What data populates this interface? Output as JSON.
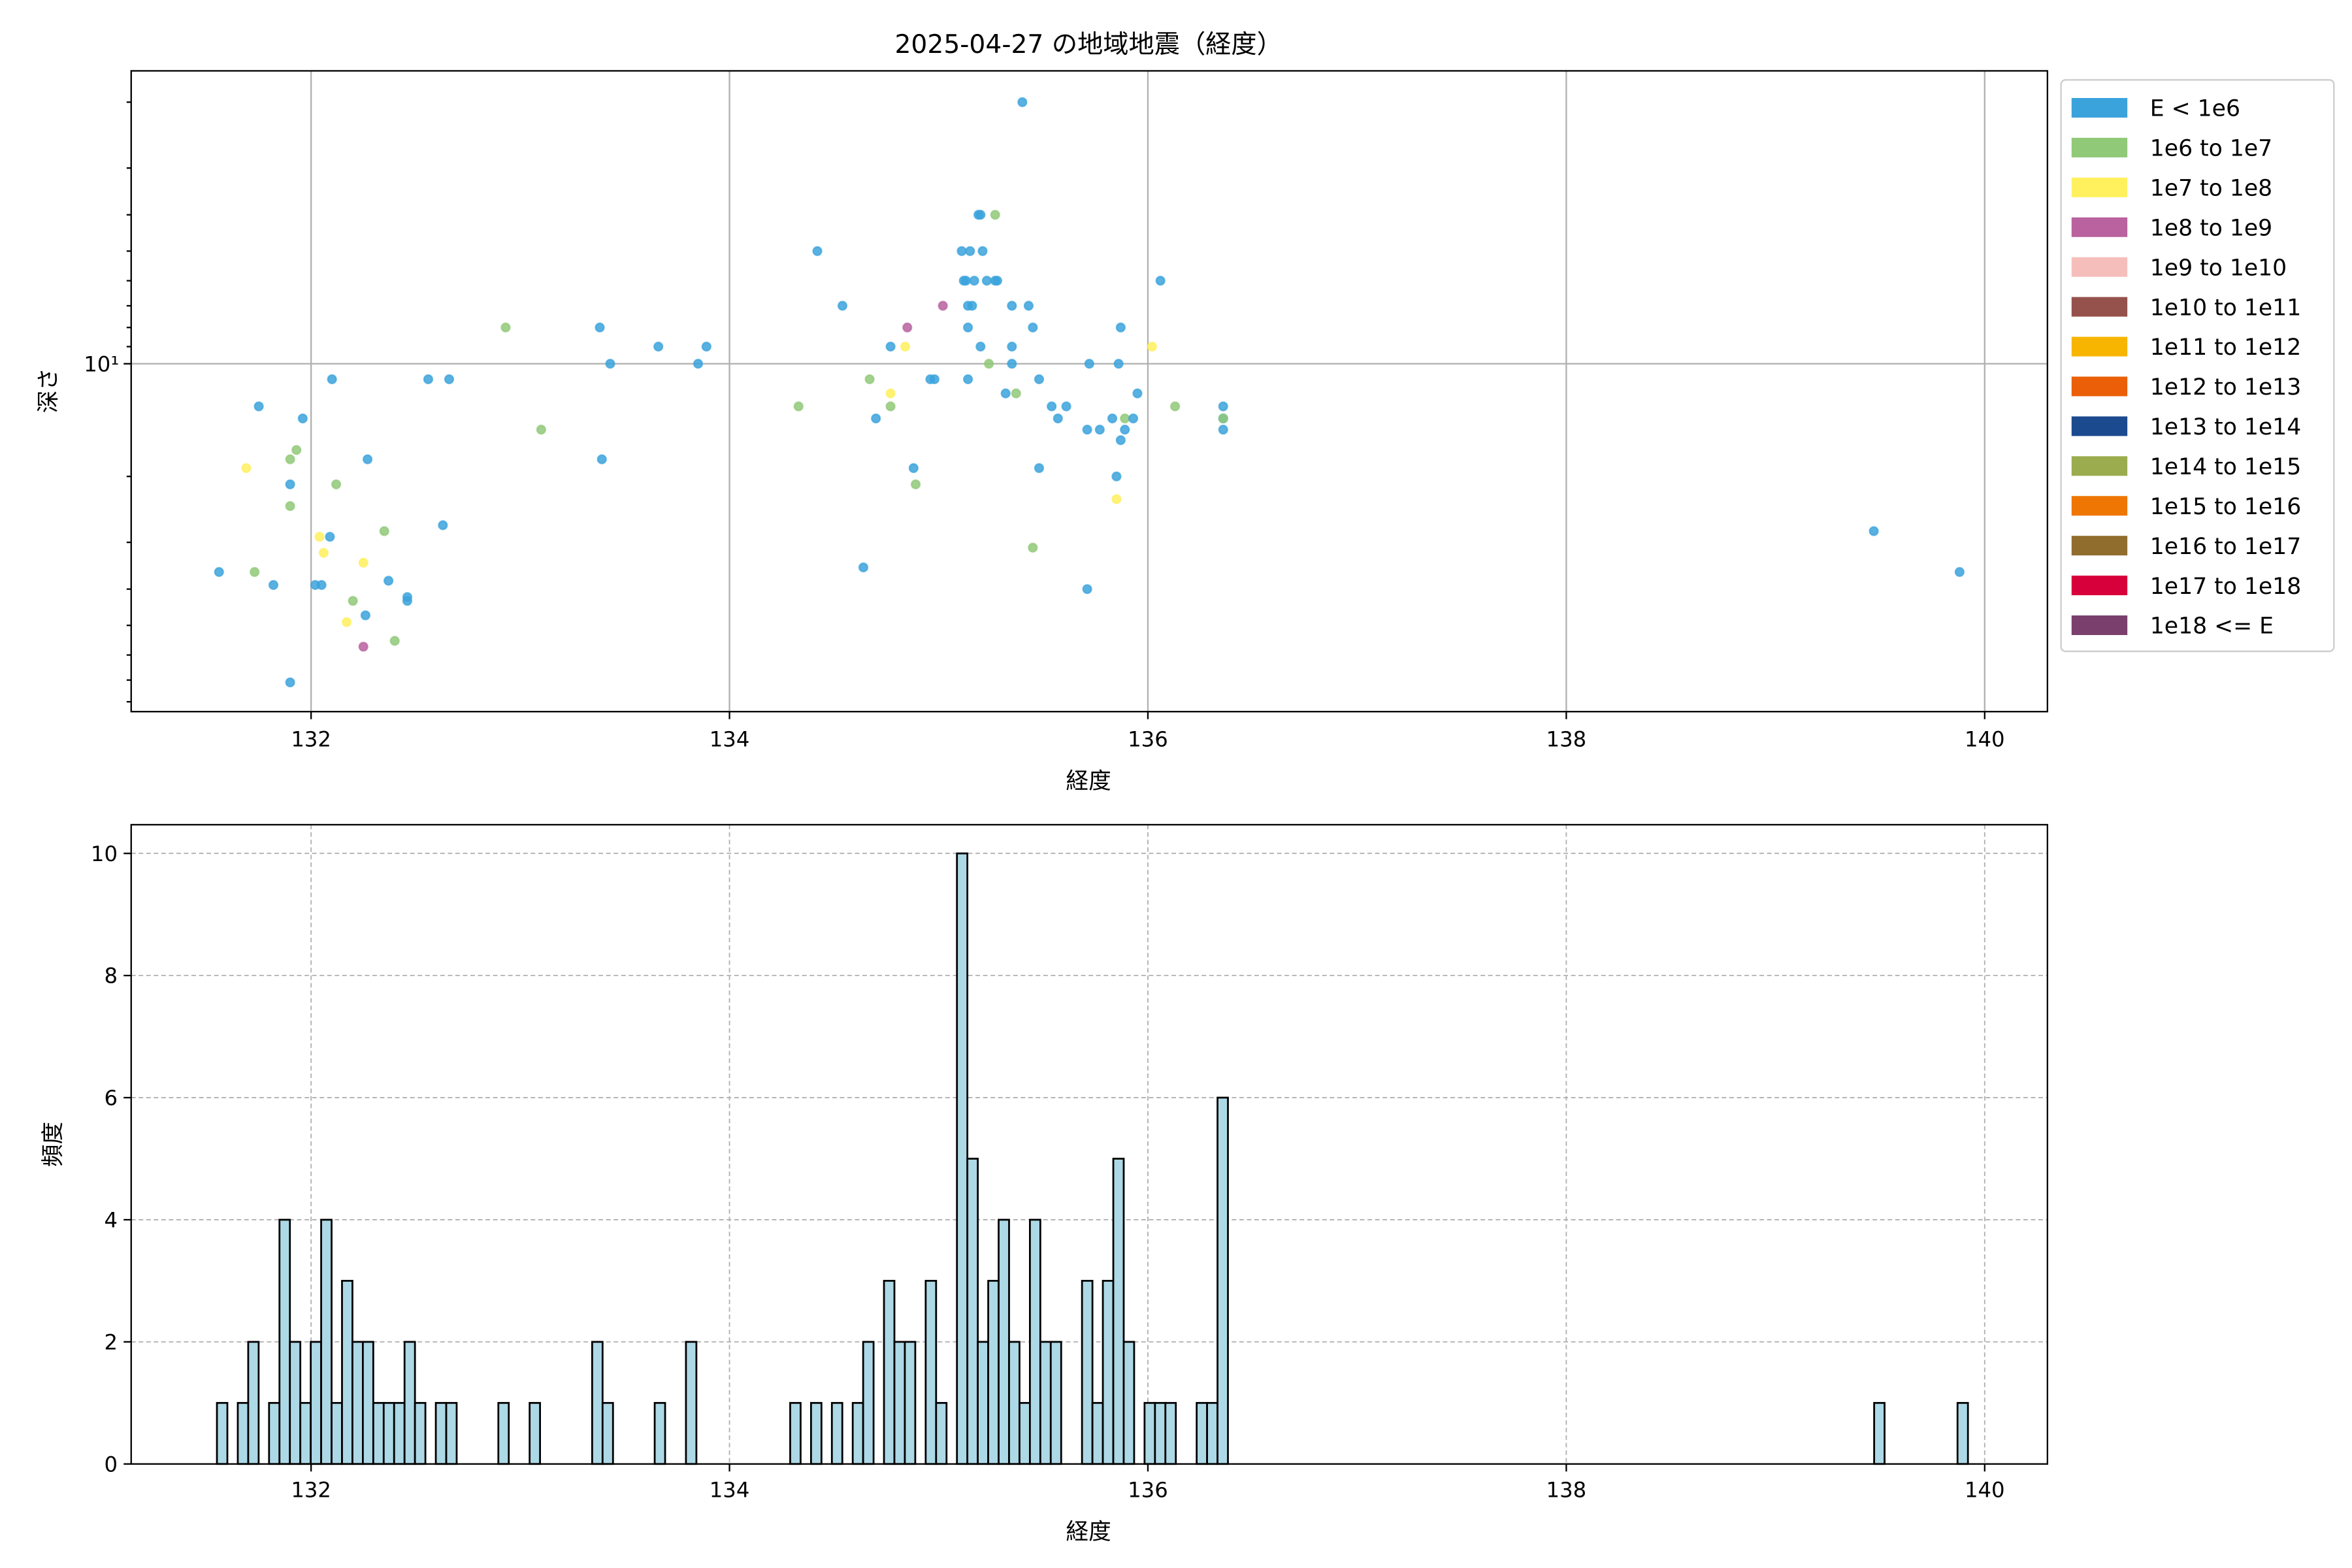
{
  "title": "2025-04-27 の地域地震（経度）",
  "chart_data": [
    {
      "type": "scatter",
      "title": "2025-04-27 の地域地震（経度）",
      "xlabel": "経度",
      "ylabel": "深さ",
      "xlim": [
        131.14,
        140.3
      ],
      "ylim": [
        1.65,
        85
      ],
      "yscale": "log",
      "yinverted": true,
      "grid": true,
      "xticks": [
        132,
        134,
        136,
        138,
        140
      ],
      "xtick_labels": [
        "132",
        "134",
        "136",
        "138",
        "140"
      ],
      "yticks_major": [
        10
      ],
      "ytick_labels": [
        "10¹"
      ],
      "legend_placement": "outside-right",
      "legend": [
        {
          "label": "E < 1e6",
          "color": "#3ba3dc"
        },
        {
          "label": "1e6 to 1e7",
          "color": "#90c978"
        },
        {
          "label": "1e7 to 1e8",
          "color": "#fff05e"
        },
        {
          "label": "1e8 to 1e9",
          "color": "#b9629f"
        },
        {
          "label": "1e9 to 1e10",
          "color": "#f5bebb"
        },
        {
          "label": "1e10 to 1e11",
          "color": "#95524c"
        },
        {
          "label": "1e11 to 1e12",
          "color": "#f7b500"
        },
        {
          "label": "1e12 to 1e13",
          "color": "#ea5f07"
        },
        {
          "label": "1e13 to 1e14",
          "color": "#1c4a8f"
        },
        {
          "label": "1e14 to 1e15",
          "color": "#9aac4e"
        },
        {
          "label": "1e15 to 1e16",
          "color": "#ef7603"
        },
        {
          "label": "1e16 to 1e17",
          "color": "#916d2d"
        },
        {
          "label": "1e17 to 1e18",
          "color": "#d7003a"
        },
        {
          "label": "1e18 <= E",
          "color": "#7a3f6d"
        }
      ],
      "points": [
        [
          131.56,
          36,
          0
        ],
        [
          131.73,
          36,
          1
        ],
        [
          131.75,
          13,
          0
        ],
        [
          131.69,
          19,
          2
        ],
        [
          131.82,
          39,
          0
        ],
        [
          131.9,
          21,
          0
        ],
        [
          131.9,
          24,
          1
        ],
        [
          131.9,
          18,
          1
        ],
        [
          131.93,
          17,
          1
        ],
        [
          131.96,
          14,
          0
        ],
        [
          131.9,
          71,
          0
        ],
        [
          132.02,
          39,
          0
        ],
        [
          132.05,
          39,
          0
        ],
        [
          132.04,
          29,
          2
        ],
        [
          132.09,
          29,
          0
        ],
        [
          132.06,
          32,
          2
        ],
        [
          132.1,
          11,
          0
        ],
        [
          132.12,
          21,
          1
        ],
        [
          132.17,
          49,
          2
        ],
        [
          132.2,
          43,
          1
        ],
        [
          132.25,
          34,
          2
        ],
        [
          132.25,
          57,
          3
        ],
        [
          132.27,
          18,
          0
        ],
        [
          132.26,
          47,
          0
        ],
        [
          132.35,
          28,
          1
        ],
        [
          132.37,
          38,
          0
        ],
        [
          132.4,
          55,
          1
        ],
        [
          132.46,
          42,
          0
        ],
        [
          132.46,
          43,
          0
        ],
        [
          132.56,
          11,
          0
        ],
        [
          132.63,
          27,
          0
        ],
        [
          132.66,
          11,
          0
        ],
        [
          132.93,
          8,
          1
        ],
        [
          133.1,
          15,
          1
        ],
        [
          133.38,
          8,
          0
        ],
        [
          133.39,
          18,
          0
        ],
        [
          133.43,
          10,
          0
        ],
        [
          133.66,
          9,
          0
        ],
        [
          133.85,
          10,
          0
        ],
        [
          133.89,
          9,
          0
        ],
        [
          134.33,
          13,
          1
        ],
        [
          134.42,
          5,
          0
        ],
        [
          134.54,
          7,
          0
        ],
        [
          134.64,
          35,
          0
        ],
        [
          134.67,
          11,
          1
        ],
        [
          134.7,
          14,
          0
        ],
        [
          134.77,
          9,
          0
        ],
        [
          134.77,
          12,
          2
        ],
        [
          134.77,
          13,
          1
        ],
        [
          134.84,
          9,
          2
        ],
        [
          134.85,
          8,
          3
        ],
        [
          134.88,
          19,
          0
        ],
        [
          134.89,
          21,
          1
        ],
        [
          134.96,
          11,
          0
        ],
        [
          134.98,
          11,
          0
        ],
        [
          135.02,
          7,
          3
        ],
        [
          135.11,
          5,
          0
        ],
        [
          135.12,
          6,
          0
        ],
        [
          135.13,
          6,
          0
        ],
        [
          135.14,
          7,
          0
        ],
        [
          135.14,
          8,
          0
        ],
        [
          135.14,
          11,
          0
        ],
        [
          135.15,
          5,
          0
        ],
        [
          135.16,
          7,
          0
        ],
        [
          135.17,
          6,
          0
        ],
        [
          135.19,
          4,
          0
        ],
        [
          135.2,
          4,
          0
        ],
        [
          135.21,
          5,
          0
        ],
        [
          135.2,
          9,
          0
        ],
        [
          135.23,
          6,
          0
        ],
        [
          135.24,
          10,
          1
        ],
        [
          135.27,
          4,
          1
        ],
        [
          135.27,
          6,
          0
        ],
        [
          135.28,
          6,
          0
        ],
        [
          135.32,
          12,
          0
        ],
        [
          135.35,
          7,
          0
        ],
        [
          135.35,
          10,
          0
        ],
        [
          135.35,
          9,
          0
        ],
        [
          135.37,
          12,
          1
        ],
        [
          135.4,
          2,
          0
        ],
        [
          135.43,
          7,
          0
        ],
        [
          135.45,
          8,
          0
        ],
        [
          135.45,
          31,
          1
        ],
        [
          135.48,
          11,
          0
        ],
        [
          135.48,
          19,
          0
        ],
        [
          135.54,
          13,
          0
        ],
        [
          135.57,
          14,
          0
        ],
        [
          135.61,
          13,
          0
        ],
        [
          135.71,
          40,
          0
        ],
        [
          135.71,
          15,
          0
        ],
        [
          135.72,
          10,
          0
        ],
        [
          135.77,
          15,
          0
        ],
        [
          135.83,
          14,
          0
        ],
        [
          135.85,
          20,
          0
        ],
        [
          135.85,
          23,
          2
        ],
        [
          135.86,
          10,
          0
        ],
        [
          135.87,
          8,
          0
        ],
        [
          135.87,
          16,
          0
        ],
        [
          135.89,
          14,
          1
        ],
        [
          135.89,
          15,
          0
        ],
        [
          135.93,
          14,
          0
        ],
        [
          135.95,
          12,
          0
        ],
        [
          136.02,
          9,
          2
        ],
        [
          136.06,
          6,
          0
        ],
        [
          136.13,
          13,
          1
        ],
        [
          136.36,
          13,
          0
        ],
        [
          136.36,
          14,
          0
        ],
        [
          136.36,
          14,
          1
        ],
        [
          136.36,
          15,
          0
        ],
        [
          139.47,
          28,
          0
        ],
        [
          139.88,
          36,
          0
        ]
      ]
    },
    {
      "type": "bar",
      "subtype": "histogram",
      "xlabel": "経度",
      "ylabel": "頻度",
      "xlim": [
        131.14,
        140.3
      ],
      "ylim": [
        0,
        10.47
      ],
      "grid": true,
      "grid_style": "dashed",
      "bar_color": "#add8e6",
      "edge_color": "#000000",
      "xticks": [
        132,
        134,
        136,
        138,
        140
      ],
      "xtick_labels": [
        "132",
        "134",
        "136",
        "138",
        "140"
      ],
      "yticks": [
        0,
        2,
        4,
        6,
        8,
        10
      ],
      "ytick_labels": [
        "0",
        "2",
        "4",
        "6",
        "8",
        "10"
      ],
      "bin_range": [
        131.55,
        139.92
      ],
      "n_bins": 168,
      "counts": [
        1,
        0,
        1,
        2,
        0,
        1,
        4,
        2,
        1,
        2,
        4,
        1,
        3,
        2,
        2,
        1,
        1,
        1,
        2,
        1,
        0,
        1,
        1,
        0,
        0,
        0,
        0,
        1,
        0,
        0,
        1,
        0,
        0,
        0,
        0,
        0,
        2,
        1,
        0,
        0,
        0,
        0,
        1,
        0,
        0,
        2,
        0,
        0,
        0,
        0,
        0,
        0,
        0,
        0,
        0,
        1,
        0,
        1,
        0,
        1,
        0,
        1,
        2,
        0,
        3,
        2,
        2,
        0,
        3,
        1,
        0,
        10,
        5,
        2,
        3,
        4,
        2,
        1,
        4,
        2,
        2,
        0,
        0,
        3,
        1,
        3,
        5,
        2,
        0,
        1,
        1,
        1,
        0,
        0,
        1,
        1,
        6,
        0,
        0,
        0,
        0,
        0,
        0,
        0,
        0,
        0,
        0,
        0,
        0,
        0,
        0,
        0,
        0,
        0,
        0,
        0,
        0,
        0,
        0,
        0,
        0,
        0,
        0,
        0,
        0,
        0,
        0,
        0,
        0,
        0,
        0,
        0,
        0,
        0,
        0,
        0,
        0,
        0,
        0,
        0,
        0,
        0,
        0,
        0,
        0,
        0,
        0,
        0,
        0,
        0,
        0,
        0,
        0,
        0,
        0,
        0,
        0,
        0,
        0,
        1,
        0,
        0,
        0,
        0,
        0,
        0,
        0,
        1
      ]
    }
  ]
}
